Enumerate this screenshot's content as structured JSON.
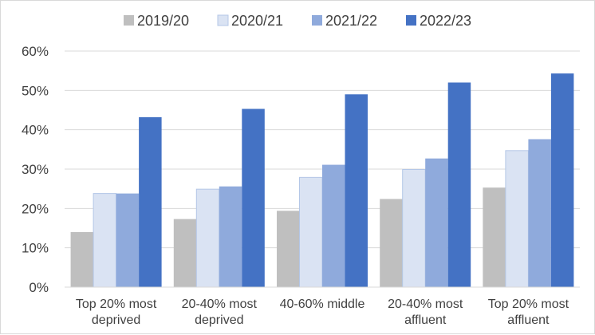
{
  "chart_data": {
    "type": "bar",
    "categories": [
      [
        "Top 20% most",
        "deprived"
      ],
      [
        "20-40% most",
        "deprived"
      ],
      [
        "40-60% middle"
      ],
      [
        "20-40% most",
        "affluent"
      ],
      [
        "Top 20% most",
        "affluent"
      ]
    ],
    "series": [
      {
        "name": "2019/20",
        "color": "#bfbfbf",
        "values": [
          14.0,
          17.3,
          19.4,
          22.4,
          25.3
        ]
      },
      {
        "name": "2020/21",
        "color": "#dae3f3",
        "values": [
          23.8,
          24.9,
          27.9,
          29.9,
          34.7
        ]
      },
      {
        "name": "2021/22",
        "color": "#8faadc",
        "values": [
          23.8,
          25.6,
          31.1,
          32.7,
          37.6
        ]
      },
      {
        "name": "2022/23",
        "color": "#4472c4",
        "values": [
          43.2,
          45.3,
          49.0,
          52.0,
          54.3
        ]
      }
    ],
    "ylim": [
      0,
      60
    ],
    "yticks": [
      "0%",
      "10%",
      "20%",
      "30%",
      "40%",
      "50%",
      "60%"
    ],
    "ytick_values": [
      0,
      10,
      20,
      30,
      40,
      50,
      60
    ],
    "title": "",
    "xlabel": "",
    "ylabel": "",
    "grid": true,
    "legend_position": "top"
  }
}
